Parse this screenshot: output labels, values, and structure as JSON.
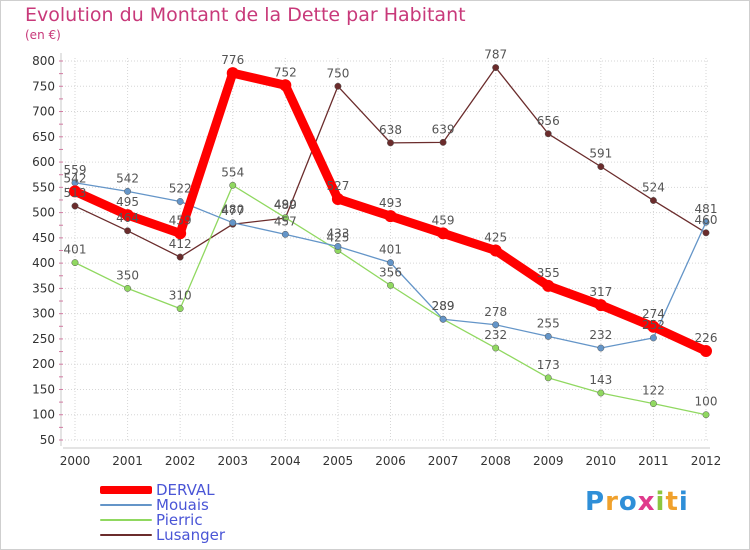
{
  "title": "Evolution du Montant de la Dette par Habitant",
  "subtitle": "(en €)",
  "logo": {
    "letters": [
      "P",
      "r",
      "o",
      "x",
      "i",
      "t",
      "i"
    ],
    "colors": [
      "#2f8fd8",
      "#f0a12c",
      "#2f8fd8",
      "#e03a8c",
      "#8cc63f",
      "#f0a12c",
      "#2f8fd8"
    ]
  },
  "chart_data": {
    "type": "line",
    "title": "Evolution du Montant de la Dette par Habitant",
    "ylabel": "(en €)",
    "xlabel": "",
    "ylim": [
      50,
      800
    ],
    "yticks": [
      50,
      100,
      150,
      200,
      250,
      300,
      350,
      400,
      450,
      500,
      550,
      600,
      650,
      700,
      750,
      800
    ],
    "x": [
      "2000",
      "2001",
      "2002",
      "2003",
      "2004",
      "2005",
      "2006",
      "2007",
      "2008",
      "2009",
      "2010",
      "2011",
      "2012"
    ],
    "grid": true,
    "legend_position": "bottom-left",
    "series": [
      {
        "name": "DERVAL",
        "color": "#ff0000",
        "values": [
          542,
          495,
          459,
          776,
          752,
          527,
          493,
          459,
          425,
          355,
          317,
          274,
          226
        ]
      },
      {
        "name": "Mouais",
        "color": "#6495c8",
        "values": [
          559,
          542,
          522,
          480,
          457,
          433,
          401,
          289,
          278,
          255,
          232,
          252,
          481
        ]
      },
      {
        "name": "Pierric",
        "color": "#90d860",
        "values": [
          401,
          350,
          310,
          554,
          490,
          425,
          356,
          289,
          232,
          173,
          143,
          122,
          100
        ]
      },
      {
        "name": "Lusanger",
        "color": "#6b2c2c",
        "values": [
          513,
          464,
          412,
          477,
          489,
          750,
          638,
          639,
          787,
          656,
          591,
          524,
          460
        ]
      }
    ],
    "data_labels": [
      [
        "542",
        "495",
        "459",
        "776",
        "752",
        "527",
        "493",
        "459",
        "425",
        "355",
        "317",
        "274",
        "226"
      ],
      [
        "559",
        "542",
        "522",
        "480",
        "457",
        "433",
        "401",
        "289",
        "278",
        "255",
        "232",
        "252",
        "481"
      ],
      [
        "401",
        "350",
        "310",
        "554",
        "490",
        "425",
        "356",
        "289",
        "232",
        "173",
        "143",
        "122",
        "100"
      ],
      [
        "513",
        "464",
        "412",
        "477",
        "489",
        "750",
        "638",
        "639",
        "787",
        "656",
        "591",
        "524",
        "460"
      ]
    ]
  }
}
